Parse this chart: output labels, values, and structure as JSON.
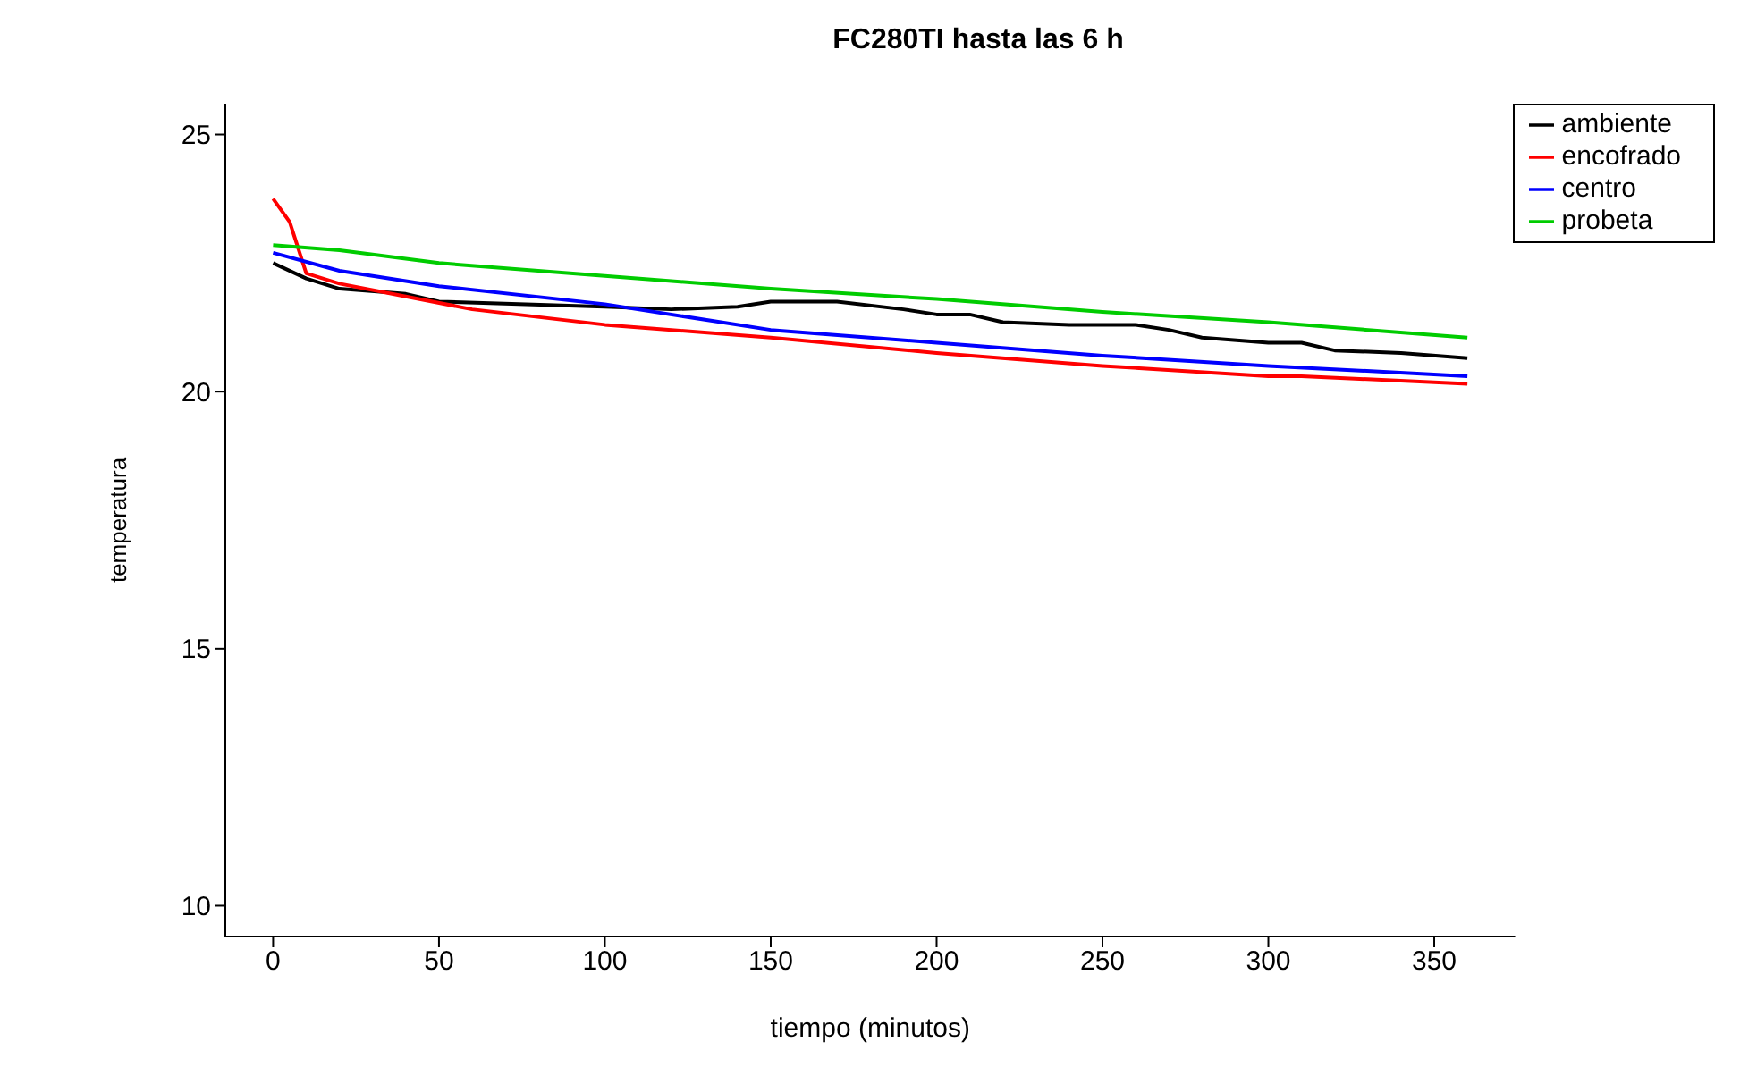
{
  "chart_data": {
    "type": "line",
    "title": "FC280TI hasta las 6 h",
    "xlabel": "tiempo (minutos)",
    "ylabel": "temperatura",
    "xlim": [
      -14.4,
      374.4
    ],
    "ylim": [
      9.4,
      25.6
    ],
    "xticks": [
      0,
      50,
      100,
      150,
      200,
      250,
      300,
      350
    ],
    "yticks": [
      10,
      15,
      20,
      25
    ],
    "grid": false,
    "legend": "top right",
    "marker": "none",
    "line_style": "solid",
    "series": [
      {
        "name": "ambiente",
        "color": "#000000",
        "x": [
          0,
          10,
          20,
          40,
          50,
          100,
          120,
          140,
          150,
          170,
          190,
          200,
          210,
          220,
          240,
          260,
          270,
          280,
          300,
          310,
          320,
          340,
          360
        ],
        "values": [
          22.5,
          22.2,
          22.0,
          21.9,
          21.75,
          21.65,
          21.6,
          21.65,
          21.75,
          21.75,
          21.6,
          21.5,
          21.5,
          21.35,
          21.3,
          21.3,
          21.2,
          21.05,
          20.95,
          20.95,
          20.8,
          20.75,
          20.65
        ]
      },
      {
        "name": "encofrado",
        "color": "#ff0000",
        "x": [
          0,
          5,
          10,
          20,
          40,
          60,
          100,
          150,
          200,
          250,
          300,
          310,
          360
        ],
        "values": [
          23.75,
          23.3,
          22.3,
          22.1,
          21.85,
          21.6,
          21.3,
          21.05,
          20.75,
          20.5,
          20.3,
          20.3,
          20.15
        ]
      },
      {
        "name": "centro",
        "color": "#0000ff",
        "x": [
          0,
          20,
          50,
          100,
          150,
          200,
          250,
          300,
          360
        ],
        "values": [
          22.7,
          22.35,
          22.05,
          21.7,
          21.2,
          20.95,
          20.7,
          20.5,
          20.3
        ]
      },
      {
        "name": "probeta",
        "color": "#00cc00",
        "x": [
          0,
          20,
          50,
          100,
          150,
          200,
          250,
          300,
          360
        ],
        "values": [
          22.85,
          22.75,
          22.5,
          22.25,
          22.0,
          21.8,
          21.55,
          21.35,
          21.05
        ]
      }
    ]
  }
}
